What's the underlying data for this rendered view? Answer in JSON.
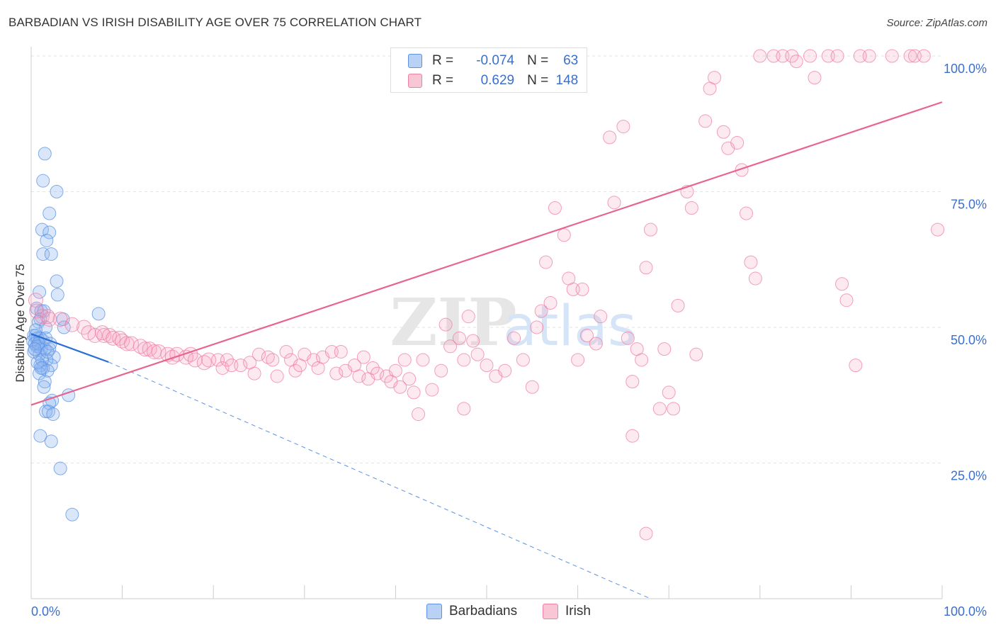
{
  "header": {
    "title": "BARBADIAN VS IRISH DISABILITY AGE OVER 75 CORRELATION CHART",
    "source": "Source: ZipAtlas.com"
  },
  "legend_top": {
    "rows": [
      {
        "r_label": "R =",
        "r_value": "-0.074",
        "n_label": "N =",
        "n_value": "63",
        "color": "#5b92e5"
      },
      {
        "r_label": "R =",
        "r_value": "0.629",
        "n_label": "N =",
        "n_value": "148",
        "color": "#f07fa3"
      }
    ]
  },
  "legend_bottom": {
    "items": [
      {
        "label": "Barbadians",
        "color": "#5b92e5"
      },
      {
        "label": "Irish",
        "color": "#f07fa3"
      }
    ]
  },
  "chart_data": {
    "type": "scatter",
    "title": "BARBADIAN VS IRISH DISABILITY AGE OVER 75 CORRELATION CHART",
    "xlabel": "",
    "ylabel": "Disability Age Over 75",
    "xlim": [
      0,
      100
    ],
    "ylim": [
      0,
      100
    ],
    "x_tick_labels": [
      "0.0%",
      "100.0%"
    ],
    "y_tick_labels": [
      "25.0%",
      "50.0%",
      "75.0%",
      "100.0%"
    ],
    "y_ticks": [
      25,
      50,
      75,
      100
    ],
    "grid": true,
    "watermark": "ZIPatlas",
    "series": [
      {
        "name": "Barbadians",
        "color": "#5b92e5",
        "points": [
          [
            1.5,
            82
          ],
          [
            1.3,
            77
          ],
          [
            2.8,
            75
          ],
          [
            2.0,
            71
          ],
          [
            1.2,
            68
          ],
          [
            2.0,
            67.5
          ],
          [
            1.7,
            66
          ],
          [
            1.3,
            63.5
          ],
          [
            2.2,
            63.5
          ],
          [
            2.8,
            58.5
          ],
          [
            2.9,
            56
          ],
          [
            0.9,
            56.5
          ],
          [
            0.6,
            53.5
          ],
          [
            1.1,
            53
          ],
          [
            1.4,
            53
          ],
          [
            1.0,
            51.5
          ],
          [
            7.4,
            52.5
          ],
          [
            3.5,
            51.5
          ],
          [
            0.8,
            51
          ],
          [
            1.6,
            50
          ],
          [
            3.6,
            50
          ],
          [
            0.3,
            48.5
          ],
          [
            0.5,
            48.5
          ],
          [
            0.7,
            48
          ],
          [
            1.0,
            48
          ],
          [
            1.3,
            47.5
          ],
          [
            0.2,
            47.5
          ],
          [
            0.4,
            47
          ],
          [
            0.6,
            46.5
          ],
          [
            0.8,
            46.5
          ],
          [
            1.1,
            46
          ],
          [
            1.5,
            46
          ],
          [
            2.0,
            46
          ],
          [
            0.3,
            45.5
          ],
          [
            0.9,
            45
          ],
          [
            2.5,
            44.5
          ],
          [
            1.7,
            44
          ],
          [
            2.2,
            43
          ],
          [
            1.0,
            43
          ],
          [
            1.3,
            42.5
          ],
          [
            1.8,
            42
          ],
          [
            0.9,
            41.5
          ],
          [
            1.5,
            40
          ],
          [
            1.4,
            39
          ],
          [
            4.1,
            37.5
          ],
          [
            2.3,
            36.5
          ],
          [
            2.0,
            36
          ],
          [
            1.6,
            34.5
          ],
          [
            1.9,
            34.5
          ],
          [
            2.4,
            34
          ],
          [
            1.0,
            30
          ],
          [
            2.2,
            29
          ],
          [
            3.2,
            24
          ],
          [
            4.5,
            15.5
          ],
          [
            0.5,
            49.5
          ],
          [
            0.8,
            47
          ],
          [
            1.2,
            44
          ],
          [
            0.7,
            43.5
          ],
          [
            1.6,
            48
          ],
          [
            2.1,
            47
          ],
          [
            0.4,
            46
          ],
          [
            1.8,
            45.5
          ],
          [
            1.1,
            42.5
          ]
        ],
        "trend": {
          "x": [
            0,
            8.5
          ],
          "y": [
            48.8,
            43.6
          ]
        },
        "trend_extension": {
          "x": [
            8.5,
            68
          ],
          "y": [
            43.6,
            0
          ]
        }
      },
      {
        "name": "Irish",
        "color": "#f07fa3",
        "points": [
          [
            0.5,
            55
          ],
          [
            0.6,
            53
          ],
          [
            1.2,
            52
          ],
          [
            1.8,
            52
          ],
          [
            3.2,
            51.5
          ],
          [
            2.0,
            51.5
          ],
          [
            4.5,
            50.5
          ],
          [
            5.8,
            50
          ],
          [
            6.3,
            49
          ],
          [
            7.0,
            48.5
          ],
          [
            7.8,
            49
          ],
          [
            8.0,
            48.5
          ],
          [
            8.6,
            48.5
          ],
          [
            9.0,
            48
          ],
          [
            9.7,
            48
          ],
          [
            10.0,
            47.5
          ],
          [
            10.5,
            47
          ],
          [
            11.0,
            47
          ],
          [
            12.0,
            46.5
          ],
          [
            12.5,
            46
          ],
          [
            13.0,
            46
          ],
          [
            13.5,
            45.5
          ],
          [
            14.0,
            45.5
          ],
          [
            15.0,
            45
          ],
          [
            15.5,
            44.5
          ],
          [
            16.0,
            45
          ],
          [
            17.0,
            44.5
          ],
          [
            17.5,
            45
          ],
          [
            18.0,
            44
          ],
          [
            19.0,
            43.5
          ],
          [
            19.5,
            44
          ],
          [
            20.5,
            44
          ],
          [
            21.0,
            42.5
          ],
          [
            21.5,
            44
          ],
          [
            22.0,
            43
          ],
          [
            23.0,
            43
          ],
          [
            24.0,
            43.5
          ],
          [
            24.5,
            41.5
          ],
          [
            25.0,
            45
          ],
          [
            26.0,
            44.5
          ],
          [
            26.5,
            44
          ],
          [
            27.0,
            41
          ],
          [
            28.0,
            45.5
          ],
          [
            28.5,
            44
          ],
          [
            29.0,
            42
          ],
          [
            29.5,
            43
          ],
          [
            30.0,
            45
          ],
          [
            31.0,
            44
          ],
          [
            31.5,
            42.5
          ],
          [
            32.0,
            44.5
          ],
          [
            33.0,
            45.5
          ],
          [
            33.5,
            41.5
          ],
          [
            34.0,
            45.5
          ],
          [
            34.5,
            42
          ],
          [
            35.5,
            43
          ],
          [
            36.0,
            41
          ],
          [
            36.5,
            44.5
          ],
          [
            37.0,
            40.5
          ],
          [
            37.5,
            42.5
          ],
          [
            38.0,
            41.5
          ],
          [
            39.0,
            41
          ],
          [
            39.5,
            40
          ],
          [
            40.0,
            42
          ],
          [
            40.5,
            39
          ],
          [
            41.0,
            44
          ],
          [
            41.5,
            40.5
          ],
          [
            42.0,
            38
          ],
          [
            42.5,
            34
          ],
          [
            43.0,
            44
          ],
          [
            44.0,
            38.5
          ],
          [
            45.0,
            42
          ],
          [
            45.5,
            50.5
          ],
          [
            46.0,
            46.5
          ],
          [
            47.0,
            48
          ],
          [
            47.5,
            35
          ],
          [
            48.0,
            52
          ],
          [
            48.5,
            47.5
          ],
          [
            49.0,
            45
          ],
          [
            50.0,
            43
          ],
          [
            51.0,
            41
          ],
          [
            52.0,
            42
          ],
          [
            53.0,
            48
          ],
          [
            54.0,
            44
          ],
          [
            55.0,
            39
          ],
          [
            56.0,
            53
          ],
          [
            56.5,
            62
          ],
          [
            57.0,
            54.5
          ],
          [
            57.5,
            72
          ],
          [
            58.5,
            67
          ],
          [
            59.0,
            59
          ],
          [
            59.5,
            57
          ],
          [
            60.0,
            44
          ],
          [
            61.0,
            48.5
          ],
          [
            62.0,
            47
          ],
          [
            62.5,
            52
          ],
          [
            63.5,
            85
          ],
          [
            64.0,
            73
          ],
          [
            65.0,
            87
          ],
          [
            65.5,
            48
          ],
          [
            66.0,
            40
          ],
          [
            66.5,
            46
          ],
          [
            67.0,
            44
          ],
          [
            67.5,
            61
          ],
          [
            68.0,
            68
          ],
          [
            69.0,
            35
          ],
          [
            69.5,
            46
          ],
          [
            70.0,
            38
          ],
          [
            71.0,
            54
          ],
          [
            72.0,
            75
          ],
          [
            72.5,
            72
          ],
          [
            73.0,
            45
          ],
          [
            74.0,
            88
          ],
          [
            74.5,
            94
          ],
          [
            75.0,
            96
          ],
          [
            76.0,
            86
          ],
          [
            76.5,
            83
          ],
          [
            77.5,
            84
          ],
          [
            78.0,
            79
          ],
          [
            78.5,
            71
          ],
          [
            79.0,
            62
          ],
          [
            79.5,
            59
          ],
          [
            80.0,
            100
          ],
          [
            81.5,
            100
          ],
          [
            82.5,
            100
          ],
          [
            83.5,
            100
          ],
          [
            84.0,
            99
          ],
          [
            85.5,
            100
          ],
          [
            86.0,
            96
          ],
          [
            87.5,
            100
          ],
          [
            88.5,
            100
          ],
          [
            89.0,
            58
          ],
          [
            89.5,
            55
          ],
          [
            90.5,
            43
          ],
          [
            91.0,
            100
          ],
          [
            92.0,
            100
          ],
          [
            94.5,
            100
          ],
          [
            96.5,
            100
          ],
          [
            97.0,
            100
          ],
          [
            98.0,
            100
          ],
          [
            99.5,
            68
          ],
          [
            66.0,
            30
          ],
          [
            67.5,
            12
          ],
          [
            70.5,
            35
          ],
          [
            47.5,
            44
          ],
          [
            55.5,
            50
          ],
          [
            60.5,
            57
          ]
        ],
        "trend": {
          "x": [
            0,
            100
          ],
          "y": [
            35.7,
            91.5
          ]
        }
      }
    ]
  }
}
